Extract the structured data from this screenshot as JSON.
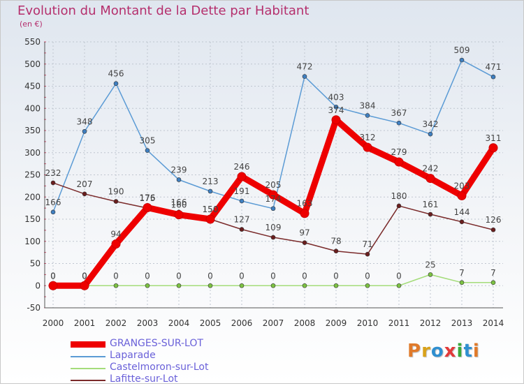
{
  "title": "Evolution du Montant de la Dette par Habitant",
  "subtitle": "(en €)",
  "logo": {
    "text": "Proxiti",
    "letter_colors": [
      "#e07a2a",
      "#d9a21a",
      "#2f8fd0",
      "#e23a3a",
      "#3aa83a",
      "#2f8fd0",
      "#e07a2a"
    ]
  },
  "chart_data": {
    "type": "line",
    "x": [
      2000,
      2001,
      2002,
      2003,
      2004,
      2005,
      2006,
      2007,
      2008,
      2009,
      2010,
      2011,
      2012,
      2013,
      2014
    ],
    "ylim": [
      -50,
      550
    ],
    "yticks": [
      -50,
      0,
      50,
      100,
      150,
      200,
      250,
      300,
      350,
      400,
      450,
      500,
      550
    ],
    "grid": true,
    "legend_position": "bottom-left",
    "series": [
      {
        "name": "Laparade",
        "color": "#5b9bd5",
        "marker": "#3f7fc0",
        "values": [
          166,
          348,
          456,
          305,
          239,
          213,
          191,
          174,
          472,
          403,
          384,
          367,
          342,
          509,
          471
        ]
      },
      {
        "name": "Lafitte-sur-Lot",
        "color": "#7a2a2a",
        "marker": "#6a1e1e",
        "values": [
          232,
          207,
          190,
          175,
          166,
          150,
          127,
          109,
          97,
          78,
          71,
          180,
          161,
          144,
          126
        ]
      },
      {
        "name": "Castelmoron-sur-Lot",
        "color": "#a4dc7a",
        "marker": "#7cc242",
        "values": [
          0,
          0,
          0,
          0,
          0,
          0,
          0,
          0,
          0,
          0,
          0,
          0,
          25,
          7,
          7
        ]
      },
      {
        "name": "GRANGES-SUR-LOT",
        "color": "#ee0000",
        "marker": "#ee0000",
        "thick": true,
        "values": [
          0,
          0,
          94,
          176,
          160,
          150,
          246,
          205,
          163,
          374,
          312,
          279,
          242,
          203,
          311
        ]
      }
    ],
    "legend_order": [
      "GRANGES-SUR-LOT",
      "Laparade",
      "Castelmoron-sur-Lot",
      "Lafitte-sur-Lot"
    ]
  }
}
